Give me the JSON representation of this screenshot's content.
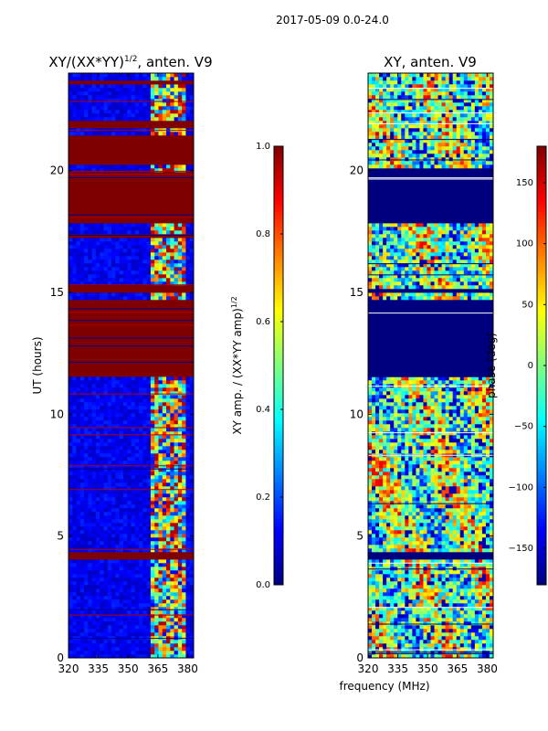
{
  "figure": {
    "suptitle": "2017-05-09 0.0-24.0"
  },
  "chart_data": [
    {
      "type": "heatmap",
      "title": "XY/(XX*YY)",
      "title_sup": "1/2",
      "title_suffix": ", anten. V9",
      "xlabel": "",
      "ylabel": "UT (hours)",
      "xlim": [
        320,
        383
      ],
      "ylim": [
        0,
        24
      ],
      "xticks": [
        "320",
        "335",
        "350",
        "365",
        "380"
      ],
      "yticks": [
        "0",
        "5",
        "10",
        "15",
        "20"
      ],
      "colorbar": {
        "label": "XY amp. / (XX*YY amp)",
        "label_sup": "1/2",
        "range": [
          0.0,
          1.0
        ],
        "ticks": [
          "0.0",
          "0.2",
          "0.4",
          "0.6",
          "0.8",
          "1.0"
        ],
        "colormap": "jet"
      },
      "saturated_hour_bands": [
        [
          4.0,
          4.3
        ],
        [
          11.6,
          14.7
        ],
        [
          15.0,
          15.25
        ],
        [
          17.3,
          17.45
        ],
        [
          17.9,
          20.0
        ],
        [
          20.3,
          21.4
        ],
        [
          21.8,
          22.1
        ],
        [
          23.05,
          23.15
        ],
        [
          23.6,
          23.75
        ]
      ],
      "active_band_mhz": [
        362,
        380
      ]
    },
    {
      "type": "heatmap",
      "title": "XY, anten. V9",
      "xlabel": "frequency (MHz)",
      "ylabel": "",
      "xlim": [
        320,
        383
      ],
      "ylim": [
        0,
        24
      ],
      "xticks": [
        "320",
        "335",
        "350",
        "365",
        "380"
      ],
      "yticks": [
        "0",
        "5",
        "10",
        "15",
        "20"
      ],
      "colorbar": {
        "label": "phase (deg)",
        "range": [
          -180,
          180
        ],
        "ticks": [
          "150",
          "100",
          "50",
          "0",
          "−50",
          "−100",
          "−150"
        ],
        "colormap": "jet"
      },
      "flat_phase_hour_bands": [
        [
          4.1,
          4.35
        ],
        [
          11.6,
          14.7
        ],
        [
          15.0,
          15.2
        ],
        [
          17.9,
          20.1
        ]
      ]
    }
  ]
}
